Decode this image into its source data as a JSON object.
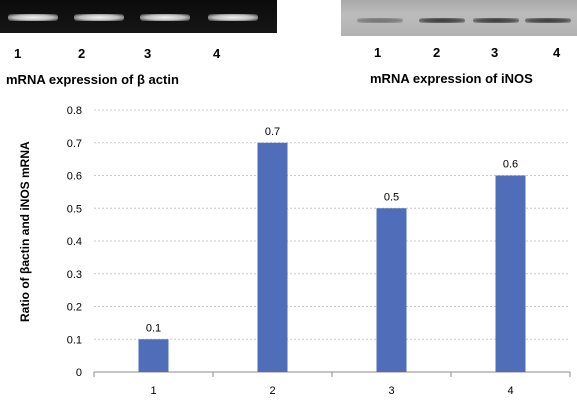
{
  "gels": {
    "actin": {
      "lane_labels": [
        "1",
        "2",
        "3",
        "4"
      ],
      "caption": "mRNA expression of β actin"
    },
    "inos": {
      "lane_labels": [
        "1",
        "2",
        "3",
        "4"
      ],
      "caption": "mRNA expression of iNOS"
    }
  },
  "chart_data": {
    "type": "bar",
    "categories": [
      "1",
      "2",
      "3",
      "4"
    ],
    "values": [
      0.1,
      0.7,
      0.5,
      0.6
    ],
    "data_labels": [
      "0.1",
      "0.7",
      "0.5",
      "0.6"
    ],
    "ylabel": "Ratio of βactin and iNOS mRNA",
    "xlabel": "",
    "ylim": [
      0,
      0.8
    ],
    "yticks": [
      "0",
      "0.1",
      "0.2",
      "0.3",
      "0.4",
      "0.5",
      "0.6",
      "0.7",
      "0.8"
    ],
    "grid": true,
    "bar_color": "#4f6db8",
    "grid_color": "#c8c8c8"
  }
}
